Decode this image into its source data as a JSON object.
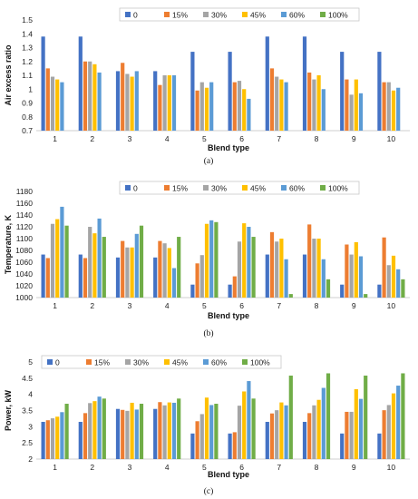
{
  "series_colors": [
    "#4472C4",
    "#ED7D31",
    "#A5A5A5",
    "#FFC000",
    "#5B9BD5",
    "#70AD47"
  ],
  "chart_data": [
    {
      "type": "bar",
      "caption": "(a)",
      "xlabel": "Blend type",
      "ylabel": "Air excess ratio",
      "categories": [
        "1",
        "2",
        "3",
        "4",
        "5",
        "6",
        "7",
        "8",
        "9",
        "10"
      ],
      "ylim": [
        0.7,
        1.5
      ],
      "yticks": [
        0.7,
        0.8,
        0.9,
        1,
        1.1,
        1.2,
        1.3,
        1.4,
        1.5
      ],
      "ytick_labels": [
        "0.7",
        "0.8",
        "0.9",
        "1",
        "1.1",
        "1.2",
        "1.3",
        "1.4",
        "1.5"
      ],
      "legend_position": "top",
      "grid": false,
      "series": [
        {
          "name": "0",
          "values": [
            1.38,
            1.38,
            1.13,
            1.13,
            1.27,
            1.27,
            1.38,
            1.38,
            1.27,
            1.27
          ]
        },
        {
          "name": "15%",
          "values": [
            1.15,
            1.2,
            1.19,
            1.03,
            0.99,
            1.05,
            1.15,
            1.12,
            1.07,
            1.05
          ]
        },
        {
          "name": "30%",
          "values": [
            1.09,
            1.2,
            1.11,
            1.1,
            1.05,
            1.06,
            1.09,
            1.07,
            0.96,
            1.05
          ]
        },
        {
          "name": "45%",
          "values": [
            1.07,
            1.18,
            1.09,
            1.1,
            1.01,
            1.0,
            1.07,
            1.1,
            1.07,
            0.99
          ]
        },
        {
          "name": "60%",
          "values": [
            1.05,
            1.12,
            1.13,
            1.1,
            1.05,
            0.93,
            1.05,
            1.0,
            0.97,
            1.01
          ]
        },
        {
          "name": "100%",
          "values": [
            null,
            null,
            null,
            null,
            null,
            null,
            null,
            null,
            null,
            null
          ]
        }
      ]
    },
    {
      "type": "bar",
      "caption": "(b)",
      "xlabel": "Blend type",
      "ylabel": "Temperature, K",
      "categories": [
        "1",
        "2",
        "3",
        "4",
        "5",
        "6",
        "7",
        "8",
        "9",
        "10"
      ],
      "ylim": [
        1000,
        1180
      ],
      "yticks": [
        1000,
        1020,
        1040,
        1060,
        1080,
        1100,
        1120,
        1140,
        1160,
        1180
      ],
      "ytick_labels": [
        "1000",
        "1020",
        "1040",
        "1060",
        "1080",
        "1100",
        "1120",
        "1140",
        "1160",
        "1180"
      ],
      "legend_position": "top",
      "grid": false,
      "series": [
        {
          "name": "0",
          "values": [
            1073,
            1073,
            1068,
            1068,
            1022,
            1022,
            1073,
            1073,
            1022,
            1022
          ]
        },
        {
          "name": "15%",
          "values": [
            1067,
            1067,
            1096,
            1096,
            1058,
            1036,
            1111,
            1124,
            1090,
            1102
          ]
        },
        {
          "name": "30%",
          "values": [
            1125,
            1120,
            1085,
            1092,
            1072,
            1095,
            1095,
            1100,
            1073,
            1055
          ]
        },
        {
          "name": "45%",
          "values": [
            1133,
            1109,
            1085,
            1084,
            1125,
            1126,
            1100,
            1100,
            1094,
            1071
          ]
        },
        {
          "name": "60%",
          "values": [
            1154,
            1134,
            1108,
            1050,
            1131,
            1120,
            1065,
            1065,
            1070,
            1048
          ]
        },
        {
          "name": "100%",
          "values": [
            1122,
            1103,
            1122,
            1103,
            1128,
            1103,
            1006,
            1031,
            1006,
            1031
          ]
        }
      ]
    },
    {
      "type": "bar",
      "caption": "(c)",
      "xlabel": "Blend type",
      "ylabel": "Power, kW",
      "categories": [
        "1",
        "2",
        "3",
        "4",
        "5",
        "6",
        "7",
        "8",
        "9",
        "10"
      ],
      "ylim": [
        2,
        5
      ],
      "yticks": [
        2,
        2.5,
        3,
        3.5,
        4,
        4.5,
        5
      ],
      "ytick_labels": [
        "2",
        "2.5",
        "3",
        "3.5",
        "4",
        "4.5",
        "5"
      ],
      "legend_position": "top",
      "grid": false,
      "series": [
        {
          "name": "0",
          "values": [
            3.15,
            3.15,
            3.55,
            3.55,
            2.79,
            2.79,
            3.15,
            3.15,
            2.79,
            2.79
          ]
        },
        {
          "name": "15%",
          "values": [
            3.2,
            3.42,
            3.52,
            3.76,
            3.17,
            2.83,
            3.41,
            3.42,
            3.46,
            3.51
          ]
        },
        {
          "name": "30%",
          "values": [
            3.26,
            3.73,
            3.49,
            3.66,
            3.39,
            3.65,
            3.51,
            3.66,
            3.46,
            3.67
          ]
        },
        {
          "name": "45%",
          "values": [
            3.31,
            3.79,
            3.74,
            3.75,
            3.9,
            4.09,
            3.75,
            3.83,
            4.16,
            4.03
          ]
        },
        {
          "name": "60%",
          "values": [
            3.45,
            3.93,
            3.53,
            3.74,
            3.67,
            4.41,
            3.66,
            4.2,
            3.86,
            4.27
          ]
        },
        {
          "name": "100%",
          "values": [
            3.71,
            3.87,
            3.71,
            3.87,
            3.71,
            3.87,
            4.58,
            4.65,
            4.58,
            4.65
          ]
        }
      ]
    }
  ]
}
